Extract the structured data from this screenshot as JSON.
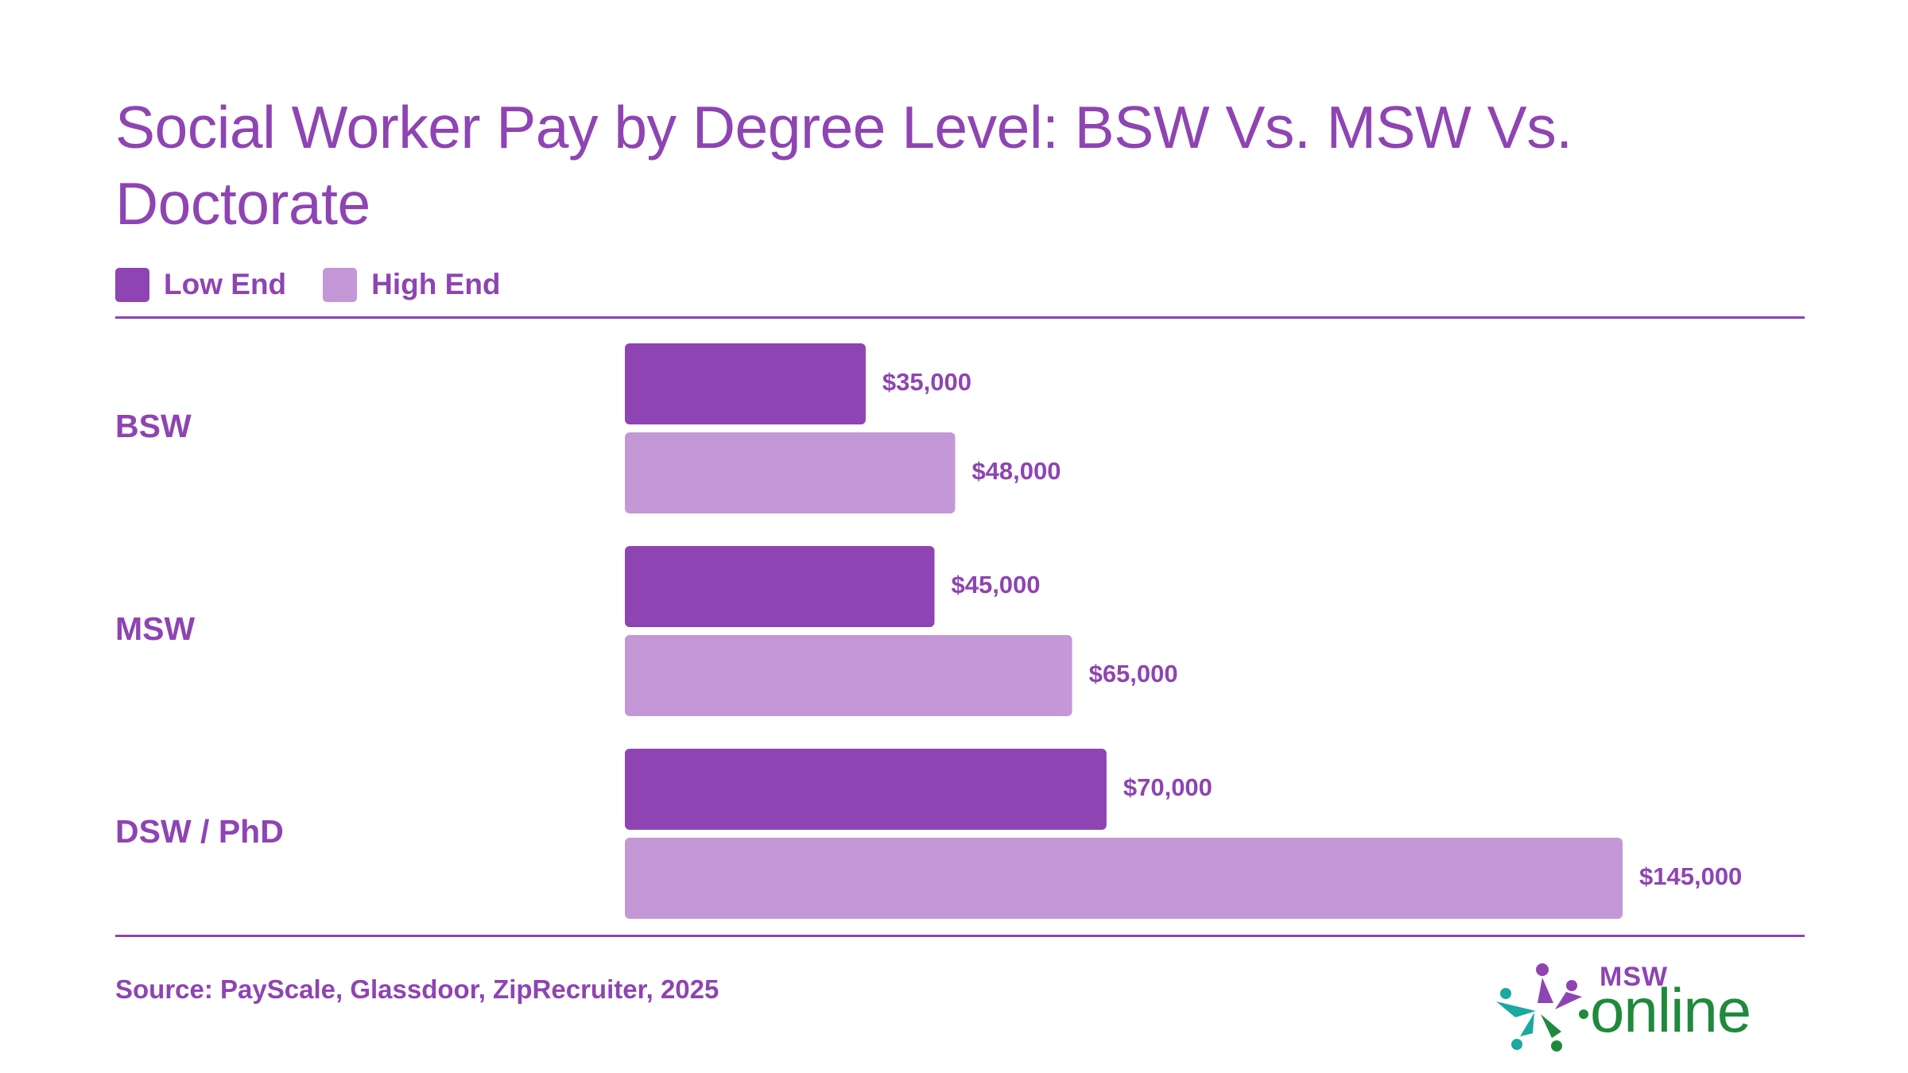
{
  "chart_data": {
    "type": "bar",
    "orientation": "horizontal",
    "title": "Social Worker Pay by Degree Level: BSW Vs. MSW Vs. Doctorate",
    "categories": [
      "BSW",
      "MSW",
      "DSW / PhD"
    ],
    "series": [
      {
        "name": "Low End",
        "color": "#8e44b2",
        "values": [
          35000,
          45000,
          70000
        ],
        "labels": [
          "$35,000",
          "$45,000",
          "$70,000"
        ]
      },
      {
        "name": "High End",
        "color": "#c497d6",
        "values": [
          48000,
          65000,
          145000
        ],
        "labels": [
          "$48,000",
          "$65,000",
          "$145,000"
        ]
      }
    ],
    "xlim": [
      0,
      145000
    ],
    "grid": false,
    "legend": "top-left"
  },
  "footer": {
    "source": "Source: PayScale, Glassdoor, ZipRecruiter, 2025"
  },
  "logo": {
    "small_text": "MSW",
    "big_text": "online"
  },
  "colors": {
    "accent": "#8e44b2",
    "accent_light": "#c497d6",
    "logo_green": "#1f8a3c",
    "logo_teal": "#19a9a1"
  }
}
